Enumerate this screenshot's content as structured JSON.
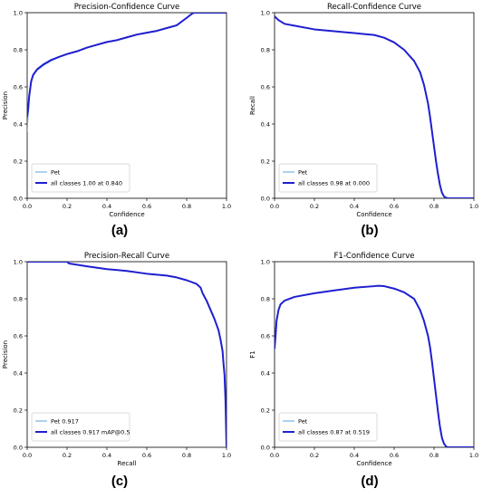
{
  "chart_data": [
    {
      "type": "line",
      "title": "Precision-Confidence Curve",
      "xlabel": "Confidence",
      "ylabel": "Precision",
      "xlim": [
        0,
        1
      ],
      "ylim": [
        0,
        1
      ],
      "xticks": [
        "0.0",
        "0.2",
        "0.4",
        "0.6",
        "0.8",
        "1.0"
      ],
      "yticks": [
        "0.0",
        "0.2",
        "0.4",
        "0.6",
        "0.8",
        "1.0"
      ],
      "legend_position": "lower-left",
      "caption": "(a)",
      "series": [
        {
          "name": "Pet",
          "color": "#5ba3e0",
          "x": [
            0,
            0.005,
            0.01,
            0.02,
            0.03,
            0.05,
            0.08,
            0.12,
            0.16,
            0.2,
            0.25,
            0.3,
            0.35,
            0.4,
            0.45,
            0.5,
            0.55,
            0.6,
            0.65,
            0.7,
            0.75,
            0.8,
            0.83,
            0.84,
            0.9,
            1.0
          ],
          "y": [
            0.36,
            0.46,
            0.53,
            0.62,
            0.66,
            0.69,
            0.715,
            0.74,
            0.76,
            0.775,
            0.79,
            0.81,
            0.825,
            0.84,
            0.85,
            0.865,
            0.88,
            0.89,
            0.9,
            0.915,
            0.93,
            0.97,
            0.995,
            1.0,
            1.0,
            1.0
          ]
        },
        {
          "name": "all classes 1.00 at 0.840",
          "color": "#1f1fd0",
          "x": [
            0,
            0.005,
            0.01,
            0.02,
            0.03,
            0.05,
            0.08,
            0.12,
            0.16,
            0.2,
            0.25,
            0.3,
            0.35,
            0.4,
            0.45,
            0.5,
            0.55,
            0.6,
            0.65,
            0.7,
            0.75,
            0.8,
            0.83,
            0.84,
            0.9,
            1.0
          ],
          "y": [
            0.44,
            0.48,
            0.55,
            0.63,
            0.665,
            0.695,
            0.72,
            0.745,
            0.762,
            0.777,
            0.792,
            0.812,
            0.827,
            0.842,
            0.852,
            0.867,
            0.882,
            0.892,
            0.902,
            0.917,
            0.932,
            0.972,
            0.997,
            1.0,
            1.0,
            1.0
          ]
        }
      ]
    },
    {
      "type": "line",
      "title": "Recall-Confidence Curve",
      "xlabel": "Confidence",
      "ylabel": "Recall",
      "xlim": [
        0,
        1
      ],
      "ylim": [
        0,
        1
      ],
      "xticks": [
        "0.0",
        "0.2",
        "0.4",
        "0.6",
        "0.8",
        "1.0"
      ],
      "yticks": [
        "0.0",
        "0.2",
        "0.4",
        "0.6",
        "0.8",
        "1.0"
      ],
      "legend_position": "lower-left",
      "caption": "(b)",
      "series": [
        {
          "name": "Pet",
          "color": "#5ba3e0",
          "x": [
            0,
            0.02,
            0.05,
            0.1,
            0.2,
            0.3,
            0.4,
            0.45,
            0.5,
            0.55,
            0.6,
            0.65,
            0.7,
            0.73,
            0.75,
            0.77,
            0.78,
            0.79,
            0.8,
            0.81,
            0.82,
            0.83,
            0.84,
            0.85,
            0.86,
            0.87,
            0.88,
            1.0
          ],
          "y": [
            0.98,
            0.96,
            0.94,
            0.93,
            0.91,
            0.9,
            0.89,
            0.885,
            0.88,
            0.865,
            0.84,
            0.8,
            0.74,
            0.68,
            0.61,
            0.51,
            0.44,
            0.36,
            0.28,
            0.2,
            0.13,
            0.07,
            0.03,
            0.01,
            0.003,
            0.0,
            0.0,
            0.0
          ]
        },
        {
          "name": "all classes 0.98 at 0.000",
          "color": "#1f1fd0",
          "x": [
            0,
            0.02,
            0.05,
            0.1,
            0.2,
            0.3,
            0.4,
            0.45,
            0.5,
            0.55,
            0.6,
            0.65,
            0.7,
            0.73,
            0.75,
            0.77,
            0.78,
            0.79,
            0.8,
            0.81,
            0.82,
            0.83,
            0.84,
            0.85,
            0.86,
            0.87,
            0.88,
            1.0
          ],
          "y": [
            0.98,
            0.96,
            0.94,
            0.93,
            0.91,
            0.9,
            0.89,
            0.885,
            0.88,
            0.865,
            0.84,
            0.8,
            0.74,
            0.68,
            0.61,
            0.51,
            0.44,
            0.36,
            0.28,
            0.2,
            0.13,
            0.07,
            0.03,
            0.01,
            0.003,
            0.0,
            0.0,
            0.0
          ]
        }
      ]
    },
    {
      "type": "line",
      "title": "Precision-Recall Curve",
      "xlabel": "Recall",
      "ylabel": "Precision",
      "xlim": [
        0,
        1
      ],
      "ylim": [
        0,
        1
      ],
      "xticks": [
        "0.0",
        "0.2",
        "0.4",
        "0.6",
        "0.8",
        "1.0"
      ],
      "yticks": [
        "0.0",
        "0.2",
        "0.4",
        "0.6",
        "0.8",
        "1.0"
      ],
      "legend_position": "lower-left",
      "caption": "(c)",
      "series": [
        {
          "name": "Pet 0.917",
          "color": "#5ba3e0",
          "x": [
            0,
            0.1,
            0.2,
            0.21,
            0.3,
            0.4,
            0.5,
            0.6,
            0.7,
            0.75,
            0.8,
            0.85,
            0.87,
            0.88,
            0.9,
            0.92,
            0.94,
            0.96,
            0.97,
            0.98,
            0.985,
            0.99,
            0.995,
            1.0
          ],
          "y": [
            1.0,
            1.0,
            1.0,
            0.99,
            0.975,
            0.96,
            0.95,
            0.935,
            0.925,
            0.915,
            0.9,
            0.88,
            0.86,
            0.83,
            0.79,
            0.74,
            0.69,
            0.63,
            0.58,
            0.52,
            0.45,
            0.39,
            0.25,
            0.0
          ]
        },
        {
          "name": "all classes 0.917 mAP@0.5",
          "color": "#1f1fd0",
          "x": [
            0,
            0.1,
            0.2,
            0.21,
            0.3,
            0.4,
            0.5,
            0.6,
            0.7,
            0.75,
            0.8,
            0.85,
            0.87,
            0.88,
            0.9,
            0.92,
            0.94,
            0.96,
            0.97,
            0.98,
            0.985,
            0.99,
            0.995,
            1.0
          ],
          "y": [
            1.0,
            1.0,
            1.0,
            0.99,
            0.975,
            0.96,
            0.95,
            0.935,
            0.925,
            0.915,
            0.9,
            0.88,
            0.86,
            0.83,
            0.79,
            0.74,
            0.69,
            0.63,
            0.58,
            0.52,
            0.45,
            0.39,
            0.25,
            0.0
          ]
        }
      ]
    },
    {
      "type": "line",
      "title": "F1-Confidence Curve",
      "xlabel": "Confidence",
      "ylabel": "F1",
      "xlim": [
        0,
        1
      ],
      "ylim": [
        0,
        1
      ],
      "xticks": [
        "0.0",
        "0.2",
        "0.4",
        "0.6",
        "0.8",
        "1.0"
      ],
      "yticks": [
        "0.0",
        "0.2",
        "0.4",
        "0.6",
        "0.8",
        "1.0"
      ],
      "legend_position": "lower-left",
      "caption": "(d)",
      "series": [
        {
          "name": "Pet",
          "color": "#5ba3e0",
          "x": [
            0,
            0.005,
            0.01,
            0.02,
            0.03,
            0.05,
            0.1,
            0.2,
            0.3,
            0.4,
            0.5,
            0.519,
            0.55,
            0.6,
            0.65,
            0.7,
            0.73,
            0.75,
            0.77,
            0.78,
            0.79,
            0.8,
            0.81,
            0.82,
            0.83,
            0.84,
            0.85,
            0.86,
            0.87,
            0.88,
            1.0
          ],
          "y": [
            0.53,
            0.6,
            0.68,
            0.74,
            0.77,
            0.79,
            0.81,
            0.83,
            0.845,
            0.86,
            0.868,
            0.87,
            0.868,
            0.855,
            0.835,
            0.8,
            0.74,
            0.68,
            0.6,
            0.54,
            0.46,
            0.37,
            0.28,
            0.19,
            0.11,
            0.05,
            0.02,
            0.005,
            0.0,
            0.0,
            0.0
          ]
        },
        {
          "name": "all classes 0.87 at 0.519",
          "color": "#1f1fd0",
          "x": [
            0,
            0.005,
            0.01,
            0.02,
            0.03,
            0.05,
            0.1,
            0.2,
            0.3,
            0.4,
            0.5,
            0.519,
            0.55,
            0.6,
            0.65,
            0.7,
            0.73,
            0.75,
            0.77,
            0.78,
            0.79,
            0.8,
            0.81,
            0.82,
            0.83,
            0.84,
            0.85,
            0.86,
            0.87,
            0.88,
            1.0
          ],
          "y": [
            0.53,
            0.6,
            0.68,
            0.74,
            0.77,
            0.79,
            0.81,
            0.83,
            0.845,
            0.86,
            0.868,
            0.87,
            0.868,
            0.855,
            0.835,
            0.8,
            0.74,
            0.68,
            0.6,
            0.54,
            0.46,
            0.37,
            0.28,
            0.19,
            0.11,
            0.05,
            0.02,
            0.005,
            0.0,
            0.0,
            0.0
          ]
        }
      ]
    }
  ]
}
